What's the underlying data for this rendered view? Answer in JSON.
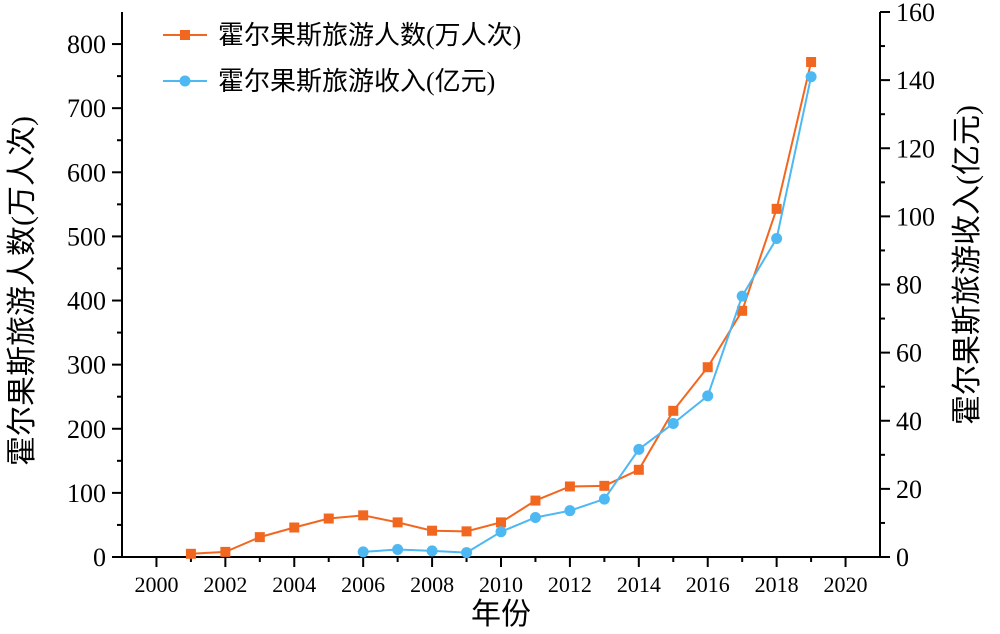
{
  "chart_data": {
    "type": "line",
    "xlabel": "年份",
    "ylabel_left": "霍尔果斯旅游人数(万人次)",
    "ylabel_right": "霍尔果斯旅游收入(亿元)",
    "xlim": [
      1999,
      2021
    ],
    "ylim_left": [
      0,
      850
    ],
    "ylim_right": [
      0,
      160
    ],
    "x_ticks": [
      2000,
      2002,
      2004,
      2006,
      2008,
      2010,
      2012,
      2014,
      2016,
      2018,
      2020
    ],
    "y_ticks_left": [
      0,
      100,
      200,
      300,
      400,
      500,
      600,
      700,
      800
    ],
    "y_ticks_right": [
      0,
      20,
      40,
      60,
      80,
      100,
      120,
      140,
      160
    ],
    "grid": false,
    "legend_position": "top-left",
    "series": [
      {
        "name": "霍尔果斯旅游人数(万人次)",
        "axis": "left",
        "marker": "square",
        "color": "#F2671F",
        "x": [
          2001,
          2002,
          2003,
          2004,
          2005,
          2006,
          2007,
          2008,
          2009,
          2010,
          2011,
          2012,
          2013,
          2014,
          2015,
          2016,
          2017,
          2018,
          2019
        ],
        "y": [
          5,
          8,
          31,
          46,
          60,
          65,
          54,
          41,
          40,
          54,
          88,
          110,
          111,
          136,
          228,
          296,
          384,
          543,
          772
        ]
      },
      {
        "name": "霍尔果斯旅游收入(亿元)",
        "axis": "right",
        "marker": "circle",
        "color": "#4DB8F2",
        "x": [
          2006,
          2007,
          2008,
          2009,
          2010,
          2011,
          2012,
          2013,
          2014,
          2015,
          2016,
          2017,
          2018,
          2019
        ],
        "y": [
          1.5,
          2.2,
          1.8,
          1.3,
          7.4,
          11.6,
          13.6,
          17.0,
          31.6,
          39.2,
          47.3,
          76.6,
          93.5,
          141.0
        ]
      }
    ]
  }
}
